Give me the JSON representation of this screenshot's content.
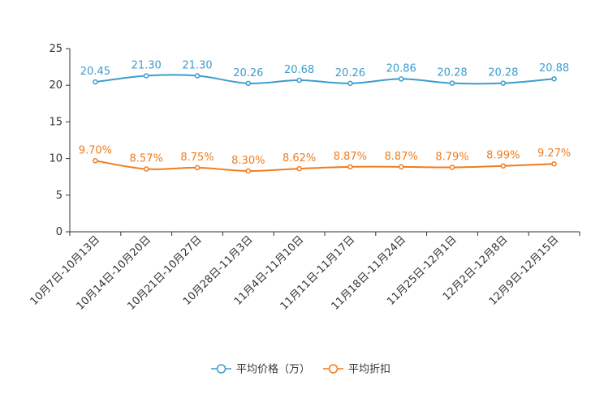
{
  "chart_data": {
    "type": "line",
    "categories": [
      "10月7日-10月13日",
      "10月14日-10月20日",
      "10月21日-10月27日",
      "10月28日-11月3日",
      "11月4日-11月10日",
      "11月11日-11月17日",
      "11月18日-11月24日",
      "11月25日-12月1日",
      "12月2日-12月8日",
      "12月9日-12月15日"
    ],
    "ylim": [
      0,
      25
    ],
    "yticks": [
      0,
      5,
      10,
      15,
      20,
      25
    ],
    "series": [
      {
        "name": "平均价格（万）",
        "color": "#3d9ccd",
        "values": [
          20.45,
          21.3,
          21.3,
          20.26,
          20.68,
          20.26,
          20.86,
          20.28,
          20.28,
          20.88
        ],
        "labels": [
          "20.45",
          "21.30",
          "21.30",
          "20.26",
          "20.68",
          "20.26",
          "20.86",
          "20.28",
          "20.28",
          "20.88"
        ]
      },
      {
        "name": "平均折扣",
        "color": "#f07c1e",
        "values": [
          9.7,
          8.57,
          8.75,
          8.3,
          8.62,
          8.87,
          8.87,
          8.79,
          8.99,
          9.27
        ],
        "labels": [
          "9.70%",
          "8.57%",
          "8.75%",
          "8.30%",
          "8.62%",
          "8.87%",
          "8.87%",
          "8.79%",
          "8.99%",
          "9.27%"
        ]
      }
    ]
  }
}
